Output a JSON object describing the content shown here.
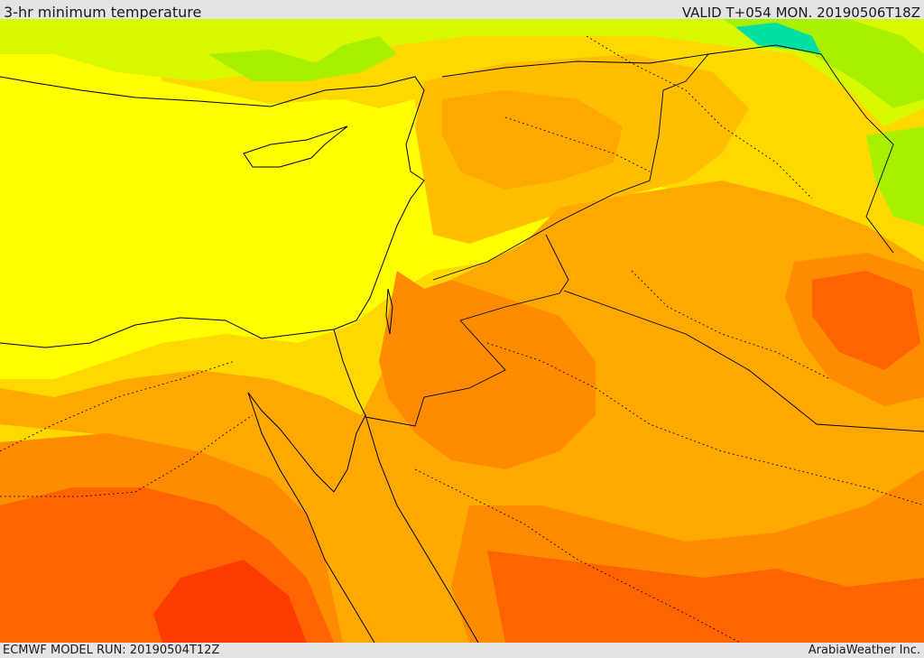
{
  "header": {
    "title": "3-hr minimum temperature",
    "valid": "VALID T+054 MON. 20190506T18Z"
  },
  "footer": {
    "model_run": "ECMWF MODEL RUN: 20190504T12Z",
    "credit": "ArabiaWeather Inc."
  },
  "colors": {
    "cool_green": "#00e0a0",
    "light_green": "#a8f000",
    "yellow_green": "#d8f800",
    "yellow": "#ffff00",
    "gold": "#ffd800",
    "light_orange": "#ffbe00",
    "orange": "#ffa800",
    "dark_orange": "#ff8c00",
    "red_orange": "#ff6400",
    "red": "#ff3c00",
    "border_line": "#000000"
  }
}
